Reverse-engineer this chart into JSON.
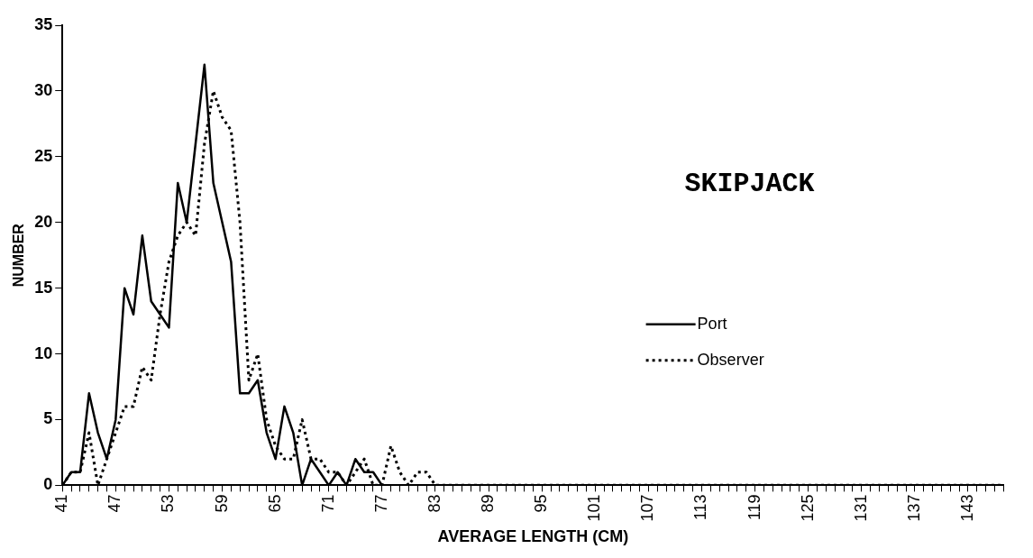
{
  "chart_data": {
    "type": "line",
    "title": "SKIPJACK",
    "xlabel": "AVERAGE LENGTH (CM)",
    "ylabel": "NUMBER",
    "categories": [
      "41",
      null,
      null,
      null,
      null,
      null,
      "47",
      null,
      null,
      null,
      null,
      null,
      "53",
      null,
      null,
      null,
      null,
      null,
      "59",
      null,
      null,
      null,
      null,
      null,
      "65",
      null,
      null,
      null,
      null,
      null,
      "71",
      null,
      null,
      null,
      null,
      null,
      "77",
      null,
      null,
      null,
      null,
      null,
      "83",
      null,
      null,
      null,
      null,
      null,
      "89",
      null,
      null,
      null,
      null,
      null,
      "95",
      null,
      null,
      null,
      null,
      null,
      "101",
      null,
      null,
      null,
      null,
      null,
      "107",
      null,
      null,
      null,
      null,
      null,
      "113",
      null,
      null,
      null,
      null,
      null,
      "119",
      null,
      null,
      null,
      null,
      null,
      "125",
      null,
      null,
      null,
      null,
      null,
      "131",
      null,
      null,
      null,
      null,
      null,
      "137",
      null,
      null,
      null,
      null,
      null,
      "143",
      null,
      null,
      null,
      null
    ],
    "series": [
      {
        "name": "Port",
        "color": "#000000",
        "line_style": "solid",
        "values": [
          0,
          1,
          1,
          7,
          4,
          2,
          5,
          15,
          13,
          19,
          14,
          13,
          12,
          23,
          20,
          26,
          32,
          23,
          20,
          17,
          7,
          7,
          8,
          4,
          2,
          6,
          4,
          0,
          2,
          1,
          0,
          1,
          0,
          2,
          1,
          1,
          0,
          0,
          0,
          0,
          0,
          0,
          0,
          0,
          0,
          0,
          0,
          0,
          0,
          0,
          0,
          0,
          0,
          0,
          0,
          0,
          0,
          0,
          0,
          0,
          0,
          0,
          0,
          0,
          0,
          0,
          0,
          0,
          0,
          0,
          0,
          0,
          0,
          0,
          0,
          0,
          0,
          0,
          0,
          0,
          0,
          0,
          0,
          0,
          0,
          0,
          0,
          0,
          0,
          0,
          0,
          0,
          0,
          0,
          0,
          0,
          0,
          0,
          0,
          0,
          0,
          0,
          0,
          0,
          0,
          0,
          0
        ]
      },
      {
        "name": "Observer",
        "color": "#000000",
        "line_style": "dotted",
        "values": [
          0,
          1,
          1,
          4,
          0,
          2,
          4,
          6,
          6,
          9,
          8,
          13,
          17,
          19,
          20,
          19,
          26,
          30,
          28,
          27,
          20,
          8,
          10,
          5,
          3,
          2,
          2,
          5,
          2,
          2,
          1,
          1,
          0,
          1,
          2,
          0,
          0,
          3,
          1,
          0,
          1,
          1,
          0,
          0,
          0,
          0,
          0,
          0,
          0,
          0,
          0,
          0,
          0,
          0,
          0,
          0,
          0,
          0,
          0,
          0,
          0,
          0,
          0,
          0,
          0,
          0,
          0,
          0,
          0,
          0,
          0,
          0,
          0,
          0,
          0,
          0,
          0,
          0,
          0,
          0,
          0,
          0,
          0,
          0,
          0,
          0,
          0,
          0,
          0,
          0,
          0,
          0,
          0,
          0,
          0,
          0,
          0,
          0,
          0,
          0,
          0,
          0,
          0,
          0,
          0,
          0,
          0
        ]
      }
    ],
    "ylim": [
      0,
      35
    ],
    "yticks": [
      0,
      5,
      10,
      15,
      20,
      25,
      30,
      35
    ],
    "grid": false,
    "legend": "right",
    "marker": "none"
  }
}
